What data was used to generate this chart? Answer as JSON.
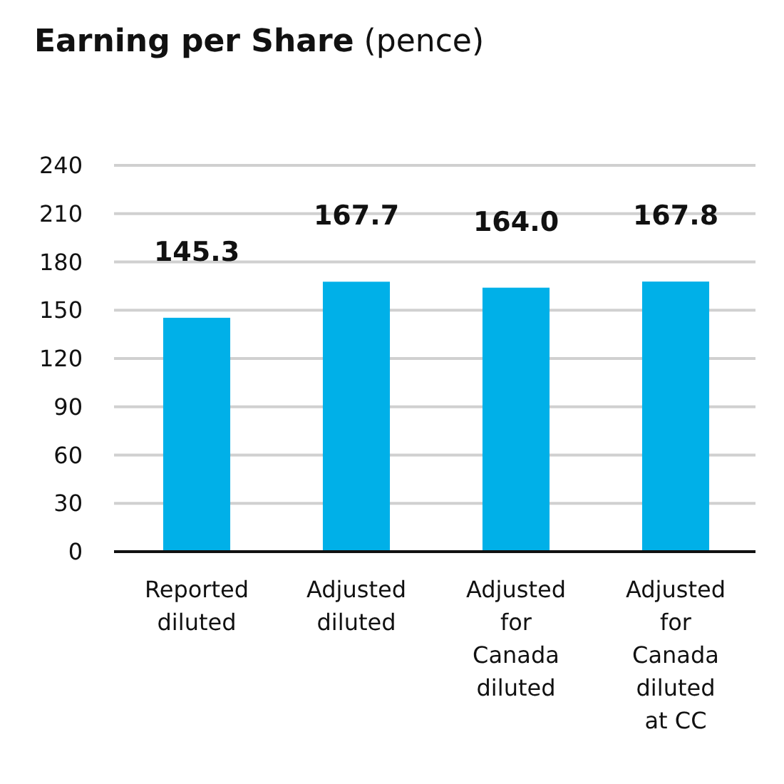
{
  "chart_data": {
    "type": "bar",
    "title": "Earning per Share (pence)",
    "categories": [
      "Reported diluted",
      "Adjusted diluted",
      "Adjusted for Canada diluted",
      "Adjusted for Canada diluted at CC"
    ],
    "values": [
      145.3,
      167.7,
      164.0,
      167.8
    ],
    "color": "#00b0e8",
    "data_labels": true,
    "value_labels": [
      "145.3",
      "167.7",
      "164.0",
      "167.8"
    ],
    "ylim": [
      0,
      240
    ],
    "yticks": [
      0,
      30,
      60,
      90,
      120,
      150,
      180,
      210,
      240
    ],
    "grid": "y"
  }
}
